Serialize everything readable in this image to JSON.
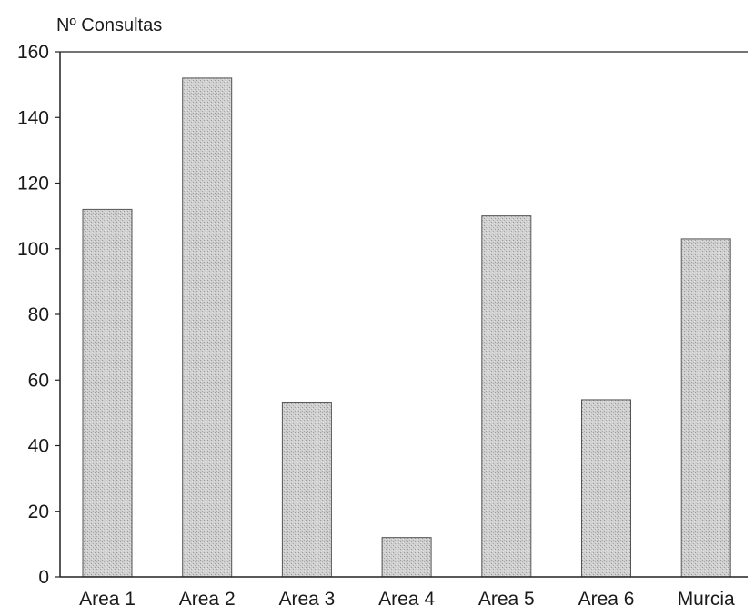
{
  "chart_data": {
    "type": "bar",
    "title": "",
    "xlabel": "",
    "ylabel": "Nº Consultas",
    "ylim": [
      0,
      160
    ],
    "yticks": [
      0,
      20,
      40,
      60,
      80,
      100,
      120,
      140,
      160
    ],
    "categories": [
      "Area 1",
      "Area 2",
      "Area 3",
      "Area 4",
      "Area 5",
      "Area 6",
      "Murcia"
    ],
    "values": [
      112,
      152,
      53,
      12,
      110,
      54,
      103
    ],
    "grid": false,
    "legend": "none",
    "colors": {
      "bar_fill": "#c6c6c6",
      "bar_edge": "#555555",
      "axis": "#222222"
    }
  }
}
